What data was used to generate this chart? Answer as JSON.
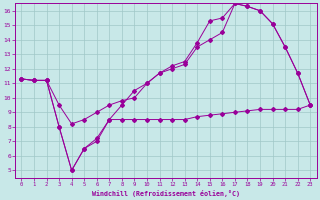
{
  "xlabel": "Windchill (Refroidissement éolien,°C)",
  "xlim": [
    -0.5,
    23.5
  ],
  "ylim": [
    4.5,
    16.5
  ],
  "yticks": [
    5,
    6,
    7,
    8,
    9,
    10,
    11,
    12,
    13,
    14,
    15,
    16
  ],
  "xticks": [
    0,
    1,
    2,
    3,
    4,
    5,
    6,
    7,
    8,
    9,
    10,
    11,
    12,
    13,
    14,
    15,
    16,
    17,
    18,
    19,
    20,
    21,
    22,
    23
  ],
  "bg_color": "#c8e8e8",
  "grid_color": "#a0c8c8",
  "line_color": "#990099",
  "line1_x": [
    0,
    1,
    2,
    3,
    4,
    5,
    6,
    7,
    8,
    9,
    10,
    11,
    12,
    13,
    14,
    15,
    16,
    17,
    18,
    19,
    20,
    21,
    22,
    23
  ],
  "line1_y": [
    11.3,
    11.2,
    11.2,
    8.0,
    5.0,
    6.5,
    7.0,
    8.5,
    8.5,
    8.5,
    8.5,
    8.5,
    8.5,
    8.5,
    8.7,
    8.8,
    8.9,
    9.0,
    9.1,
    9.2,
    9.2,
    9.2,
    9.2,
    9.5
  ],
  "line2_x": [
    0,
    1,
    2,
    3,
    4,
    5,
    6,
    7,
    8,
    9,
    10,
    11,
    12,
    13,
    14,
    15,
    16,
    17,
    18,
    19,
    20,
    21,
    22,
    23
  ],
  "line2_y": [
    11.3,
    11.2,
    11.2,
    9.5,
    8.2,
    8.5,
    9.0,
    9.5,
    9.8,
    10.0,
    11.0,
    11.7,
    12.0,
    12.3,
    13.5,
    14.0,
    14.5,
    16.5,
    16.3,
    16.0,
    15.1,
    13.5,
    11.7,
    9.5
  ],
  "line3_x": [
    0,
    1,
    2,
    3,
    4,
    5,
    6,
    7,
    8,
    9,
    10,
    11,
    12,
    13,
    14,
    15,
    16,
    17,
    18,
    19,
    20,
    21,
    22,
    23
  ],
  "line3_y": [
    11.3,
    11.2,
    11.2,
    8.0,
    5.0,
    6.5,
    7.2,
    8.5,
    9.5,
    10.5,
    11.0,
    11.7,
    12.2,
    12.5,
    13.8,
    15.3,
    15.5,
    16.5,
    16.3,
    16.0,
    15.1,
    13.5,
    11.7,
    9.5
  ]
}
